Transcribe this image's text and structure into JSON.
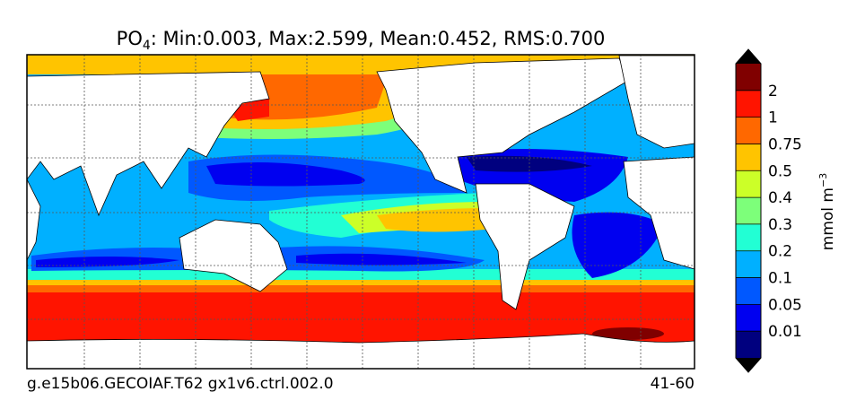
{
  "title": {
    "species": "PO",
    "subscript": "4",
    "stats": ": Min:0.003, Max:2.599, Mean:0.452, RMS:0.700"
  },
  "colorbar": {
    "unit": "mmol m",
    "unit_exponent": "−3",
    "ticks": [
      0.01,
      0.05,
      0.1,
      0.2,
      0.3,
      0.4,
      0.5,
      0.75,
      1,
      2
    ],
    "colors": [
      "#00007f",
      "#0000f0",
      "#0058ff",
      "#00b0ff",
      "#22ffd4",
      "#7dff7a",
      "#ccff28",
      "#ffc400",
      "#ff6800",
      "#ff1400",
      "#800000"
    ]
  },
  "footer": {
    "case": "g.e15b06.GECOIAF.T62 gx1v6.ctrl.002.0",
    "years": "41-60"
  }
}
